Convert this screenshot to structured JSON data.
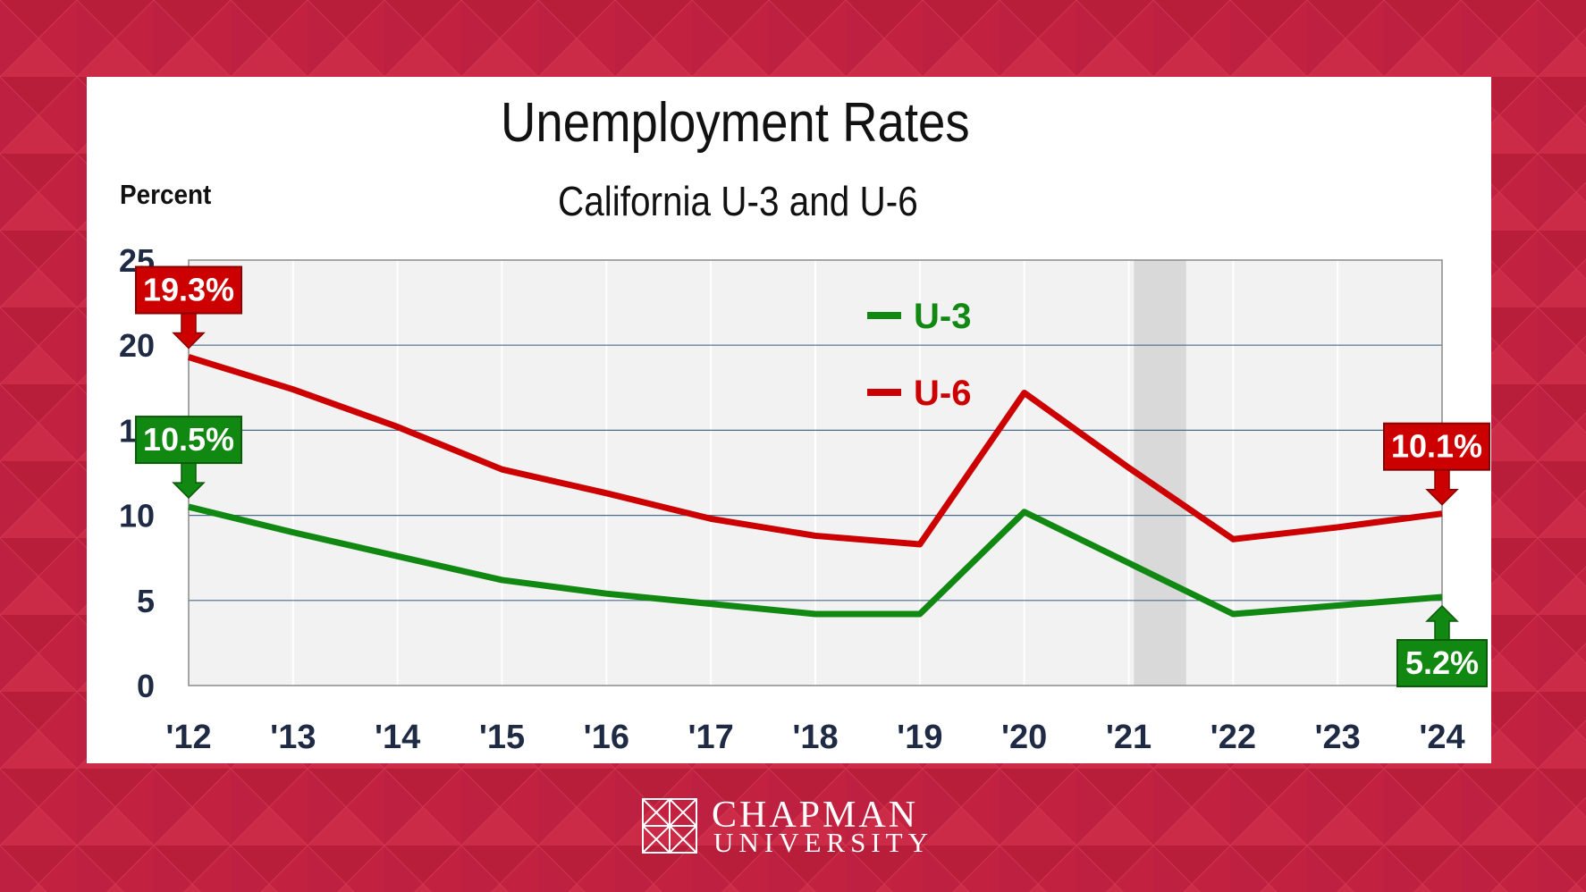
{
  "colors": {
    "background": "#c2223f",
    "u3": "#118811",
    "u6": "#cc0000",
    "plot_bg": "#f2f2f2",
    "recession_band": "#d9d9d9",
    "axis_text": "#1f2a44"
  },
  "brand": {
    "line1": "CHAPMAN",
    "line2": "UNIVERSITY",
    "logo_icon": "chapman-window-logo"
  },
  "chart_data": {
    "type": "line",
    "title": "Unemployment Rates",
    "subtitle": "California U-3 and U-6",
    "ylabel": "Percent",
    "xlabel": "",
    "ylim": [
      0,
      25
    ],
    "yticks": [
      0,
      5,
      10,
      15,
      20,
      25
    ],
    "categories": [
      "'12",
      "'13",
      "'14",
      "'15",
      "'16",
      "'17",
      "'18",
      "'19",
      "'20",
      "'21",
      "'22",
      "'23",
      "'24"
    ],
    "recession_shading": {
      "from_year": 2021.05,
      "to_year": 2021.55
    },
    "series": [
      {
        "name": "U-3",
        "color_key": "u3",
        "values": [
          10.5,
          9.0,
          7.6,
          6.2,
          5.4,
          4.8,
          4.2,
          4.2,
          10.2,
          7.2,
          4.2,
          4.7,
          5.2
        ]
      },
      {
        "name": "U-6",
        "color_key": "u6",
        "values": [
          19.3,
          17.4,
          15.2,
          12.7,
          11.3,
          9.8,
          8.8,
          8.3,
          17.2,
          12.8,
          8.6,
          9.3,
          10.1
        ]
      }
    ],
    "legend": [
      "U-3",
      "U-6"
    ],
    "legend_position": "top-center",
    "annotations": [
      {
        "label": "19.3%",
        "series": "U-6",
        "index": 0,
        "arrow": "down",
        "anchor": "above"
      },
      {
        "label": "10.5%",
        "series": "U-3",
        "index": 0,
        "arrow": "down",
        "anchor": "above"
      },
      {
        "label": "10.1%",
        "series": "U-6",
        "index": 12,
        "arrow": "down",
        "anchor": "above"
      },
      {
        "label": "5.2%",
        "series": "U-3",
        "index": 12,
        "arrow": "up",
        "anchor": "below"
      }
    ]
  }
}
